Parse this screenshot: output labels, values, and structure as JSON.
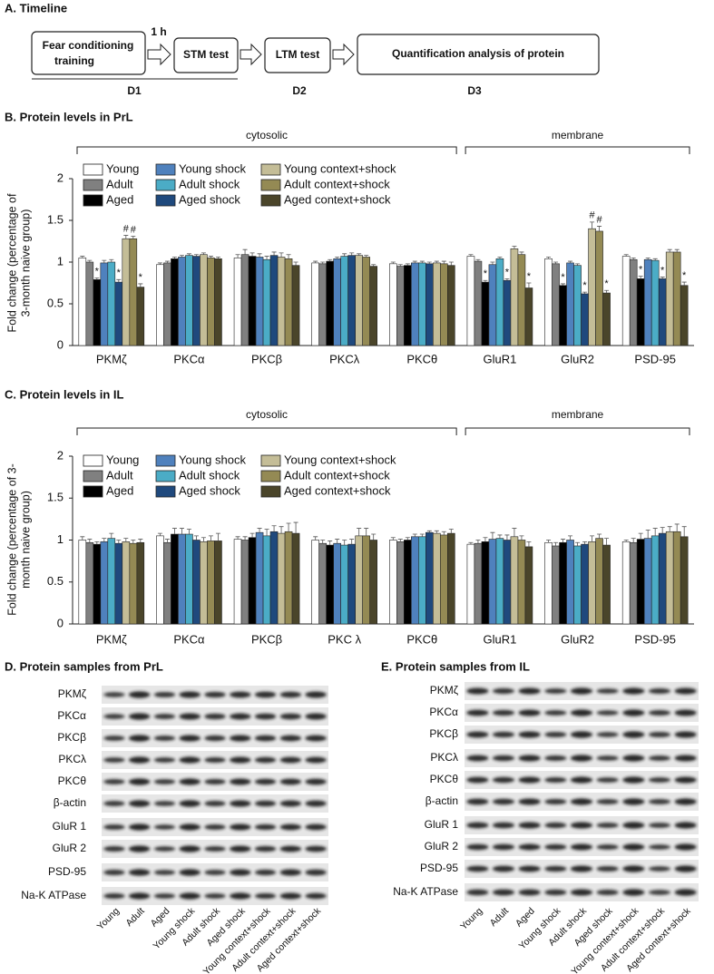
{
  "timeline": {
    "title": "A. Timeline",
    "steps": [
      [
        "Fear conditioning",
        "training"
      ],
      [
        "STM test"
      ],
      [
        "LTM test"
      ],
      [
        "Quantification  analysis of protein"
      ]
    ],
    "interval": "1 h",
    "days": [
      "D1",
      "D2",
      "D3"
    ]
  },
  "chart_data": [
    {
      "type": "bar",
      "title": "B. Protein levels in PrL",
      "groups": [
        "cytosolic",
        "membrane"
      ],
      "y_label": [
        "Fold change (percentage of",
        "3-month naive group)"
      ],
      "categories": [
        "PKMζ",
        "PKCα",
        "PKCβ",
        "PKCλ",
        "PKCθ",
        "GluR1",
        "GluR2",
        "PSD-95"
      ],
      "series": [
        {
          "name": "Young",
          "color": "#ffffff",
          "values": [
            1.05,
            0.97,
            1.05,
            0.99,
            0.98,
            1.07,
            1.04,
            1.07
          ],
          "errors": [
            0.02,
            0.02,
            0.04,
            0.02,
            0.02,
            0.02,
            0.02,
            0.02
          ],
          "markers": [
            null,
            null,
            null,
            null,
            null,
            null,
            null,
            null
          ]
        },
        {
          "name": "Adult",
          "color": "#808080",
          "values": [
            1.0,
            0.99,
            1.09,
            0.98,
            0.95,
            1.01,
            0.98,
            1.03
          ],
          "errors": [
            0.02,
            0.02,
            0.06,
            0.02,
            0.02,
            0.02,
            0.02,
            0.02
          ],
          "markers": [
            null,
            null,
            null,
            null,
            null,
            null,
            null,
            null
          ]
        },
        {
          "name": "Aged",
          "color": "#000000",
          "values": [
            0.79,
            1.04,
            1.07,
            1.01,
            0.96,
            0.76,
            0.72,
            0.8
          ],
          "errors": [
            0.02,
            0.02,
            0.04,
            0.02,
            0.02,
            0.02,
            0.02,
            0.03
          ],
          "markers": [
            "*",
            null,
            null,
            null,
            null,
            "*",
            "*",
            "*"
          ]
        },
        {
          "name": "Young shock",
          "color": "#4f81bd",
          "values": [
            0.99,
            1.06,
            1.06,
            1.04,
            0.99,
            0.97,
            0.99,
            1.03
          ],
          "errors": [
            0.03,
            0.02,
            0.04,
            0.02,
            0.02,
            0.03,
            0.02,
            0.02
          ],
          "markers": [
            null,
            null,
            null,
            null,
            null,
            null,
            null,
            null
          ]
        },
        {
          "name": "Adult shock",
          "color": "#4bacc6",
          "values": [
            1.0,
            1.08,
            1.03,
            1.07,
            0.99,
            1.04,
            0.96,
            1.02
          ],
          "errors": [
            0.03,
            0.02,
            0.04,
            0.03,
            0.02,
            0.02,
            0.02,
            0.02
          ],
          "markers": [
            null,
            null,
            null,
            null,
            null,
            null,
            null,
            null
          ]
        },
        {
          "name": "Aged shock",
          "color": "#1f497d",
          "values": [
            0.76,
            1.07,
            1.08,
            1.08,
            0.98,
            0.78,
            0.62,
            0.8
          ],
          "errors": [
            0.03,
            0.02,
            0.04,
            0.03,
            0.02,
            0.02,
            0.02,
            0.02
          ],
          "markers": [
            "*",
            null,
            null,
            null,
            null,
            "*",
            "*",
            "*"
          ]
        },
        {
          "name": "Young context+shock",
          "color": "#c4bd97",
          "values": [
            1.28,
            1.09,
            1.06,
            1.08,
            0.99,
            1.16,
            1.4,
            1.12
          ],
          "errors": [
            0.04,
            0.02,
            0.05,
            0.02,
            0.02,
            0.03,
            0.08,
            0.03
          ],
          "markers": [
            "#",
            null,
            null,
            null,
            null,
            null,
            "#",
            null
          ]
        },
        {
          "name": "Adult context+shock",
          "color": "#948a54",
          "values": [
            1.28,
            1.05,
            1.04,
            1.06,
            0.98,
            1.09,
            1.37,
            1.12
          ],
          "errors": [
            0.03,
            0.02,
            0.05,
            0.02,
            0.03,
            0.03,
            0.06,
            0.03
          ],
          "markers": [
            "#",
            null,
            null,
            null,
            null,
            null,
            "#",
            null
          ]
        },
        {
          "name": "Aged context+shock",
          "color": "#4a452a",
          "values": [
            0.7,
            1.04,
            0.96,
            0.95,
            0.96,
            0.69,
            0.63,
            0.72
          ],
          "errors": [
            0.04,
            0.02,
            0.04,
            0.02,
            0.04,
            0.06,
            0.03,
            0.04
          ],
          "markers": [
            "*",
            null,
            null,
            null,
            null,
            "*",
            "*",
            "*"
          ]
        }
      ],
      "ylim": [
        0,
        2
      ],
      "yticks": [
        0,
        0.5,
        1,
        1.5,
        2
      ],
      "legend": "upper left"
    },
    {
      "type": "bar",
      "title": "C. Protein levels in IL",
      "groups": [
        "cytosolic",
        "membrane"
      ],
      "y_label": [
        "Fold change (percentage  of 3-",
        "month naive  group)"
      ],
      "categories": [
        "PKMζ",
        "PKCα",
        "PKCβ",
        "PKC λ",
        "PKCθ",
        "GluR1",
        "GluR2",
        "PSD-95"
      ],
      "series": [
        {
          "name": "Young",
          "color": "#ffffff",
          "values": [
            1.0,
            1.05,
            1.01,
            1.0,
            1.0,
            0.95,
            0.97,
            0.98
          ],
          "errors": [
            0.04,
            0.03,
            0.03,
            0.04,
            0.03,
            0.02,
            0.03,
            0.02
          ]
        },
        {
          "name": "Adult",
          "color": "#808080",
          "values": [
            0.97,
            0.97,
            1.0,
            0.96,
            0.98,
            0.96,
            0.93,
            0.97
          ],
          "errors": [
            0.04,
            0.04,
            0.04,
            0.04,
            0.03,
            0.04,
            0.04,
            0.05
          ]
        },
        {
          "name": "Aged",
          "color": "#000000",
          "values": [
            0.95,
            1.07,
            1.03,
            0.94,
            1.0,
            0.98,
            0.97,
            1.01
          ],
          "errors": [
            0.03,
            0.07,
            0.05,
            0.05,
            0.03,
            0.05,
            0.04,
            0.07
          ]
        },
        {
          "name": "Young shock",
          "color": "#4f81bd",
          "values": [
            0.98,
            1.07,
            1.09,
            0.96,
            1.04,
            1.01,
            1.0,
            1.02
          ],
          "errors": [
            0.04,
            0.07,
            0.05,
            0.05,
            0.03,
            0.08,
            0.05,
            0.1
          ]
        },
        {
          "name": "Adult shock",
          "color": "#4bacc6",
          "values": [
            1.02,
            1.07,
            1.05,
            0.94,
            1.04,
            1.02,
            0.93,
            1.05
          ],
          "errors": [
            0.06,
            0.06,
            0.08,
            0.06,
            0.03,
            0.04,
            0.04,
            0.09
          ]
        },
        {
          "name": "Aged shock",
          "color": "#1f497d",
          "values": [
            0.96,
            1.0,
            1.1,
            0.95,
            1.09,
            1.0,
            0.95,
            1.08
          ],
          "errors": [
            0.04,
            0.05,
            0.07,
            0.06,
            0.02,
            0.06,
            0.03,
            0.07
          ]
        },
        {
          "name": "Young context+shock",
          "color": "#c4bd97",
          "values": [
            0.98,
            0.98,
            1.08,
            1.05,
            1.08,
            1.04,
            0.98,
            1.1
          ],
          "errors": [
            0.04,
            0.05,
            0.08,
            0.09,
            0.03,
            0.1,
            0.07,
            0.06
          ]
        },
        {
          "name": "Adult context+shock",
          "color": "#948a54",
          "values": [
            0.96,
            0.99,
            1.1,
            1.05,
            1.06,
            1.0,
            1.02,
            1.1
          ],
          "errors": [
            0.04,
            0.06,
            0.1,
            0.09,
            0.04,
            0.05,
            0.05,
            0.09
          ]
        },
        {
          "name": "Aged context+shock",
          "color": "#4a452a",
          "values": [
            0.97,
            0.99,
            1.08,
            1.0,
            1.08,
            0.92,
            0.94,
            1.04
          ],
          "errors": [
            0.04,
            0.09,
            0.13,
            0.07,
            0.05,
            0.06,
            0.08,
            0.12
          ]
        }
      ],
      "ylim": [
        0,
        2
      ],
      "yticks": [
        0,
        0.5,
        1,
        1.5,
        2
      ],
      "legend": "upper left"
    }
  ],
  "blots": [
    {
      "title": "D. Protein samples from PrL",
      "rows": [
        "PKMζ",
        "PKCα",
        "PKCβ",
        "PKCλ",
        "PKCθ",
        "β-actin",
        "GluR 1",
        "GluR 2",
        "PSD-95",
        "Na-K ATPase"
      ],
      "lanes": [
        "Young",
        "Adult",
        "Aged",
        "Young shock",
        "Adult shock",
        "Aged shock",
        "Young context+shock",
        "Adult context+shock",
        "Aged context+shock"
      ]
    },
    {
      "title": "E. Protein samples from IL",
      "rows": [
        "PKMζ",
        "PKCα",
        "PKCβ",
        "PKCλ",
        "PKCθ",
        "β-actin",
        "GluR 1",
        "GluR 2",
        "PSD-95",
        "Na-K ATPase"
      ],
      "lanes": [
        "Young",
        "Adult",
        "Aged",
        "Young shock",
        "Adult shock",
        "Aged shock",
        "Young context+shock",
        "Adult context+shock",
        "Aged context+shock"
      ]
    }
  ]
}
